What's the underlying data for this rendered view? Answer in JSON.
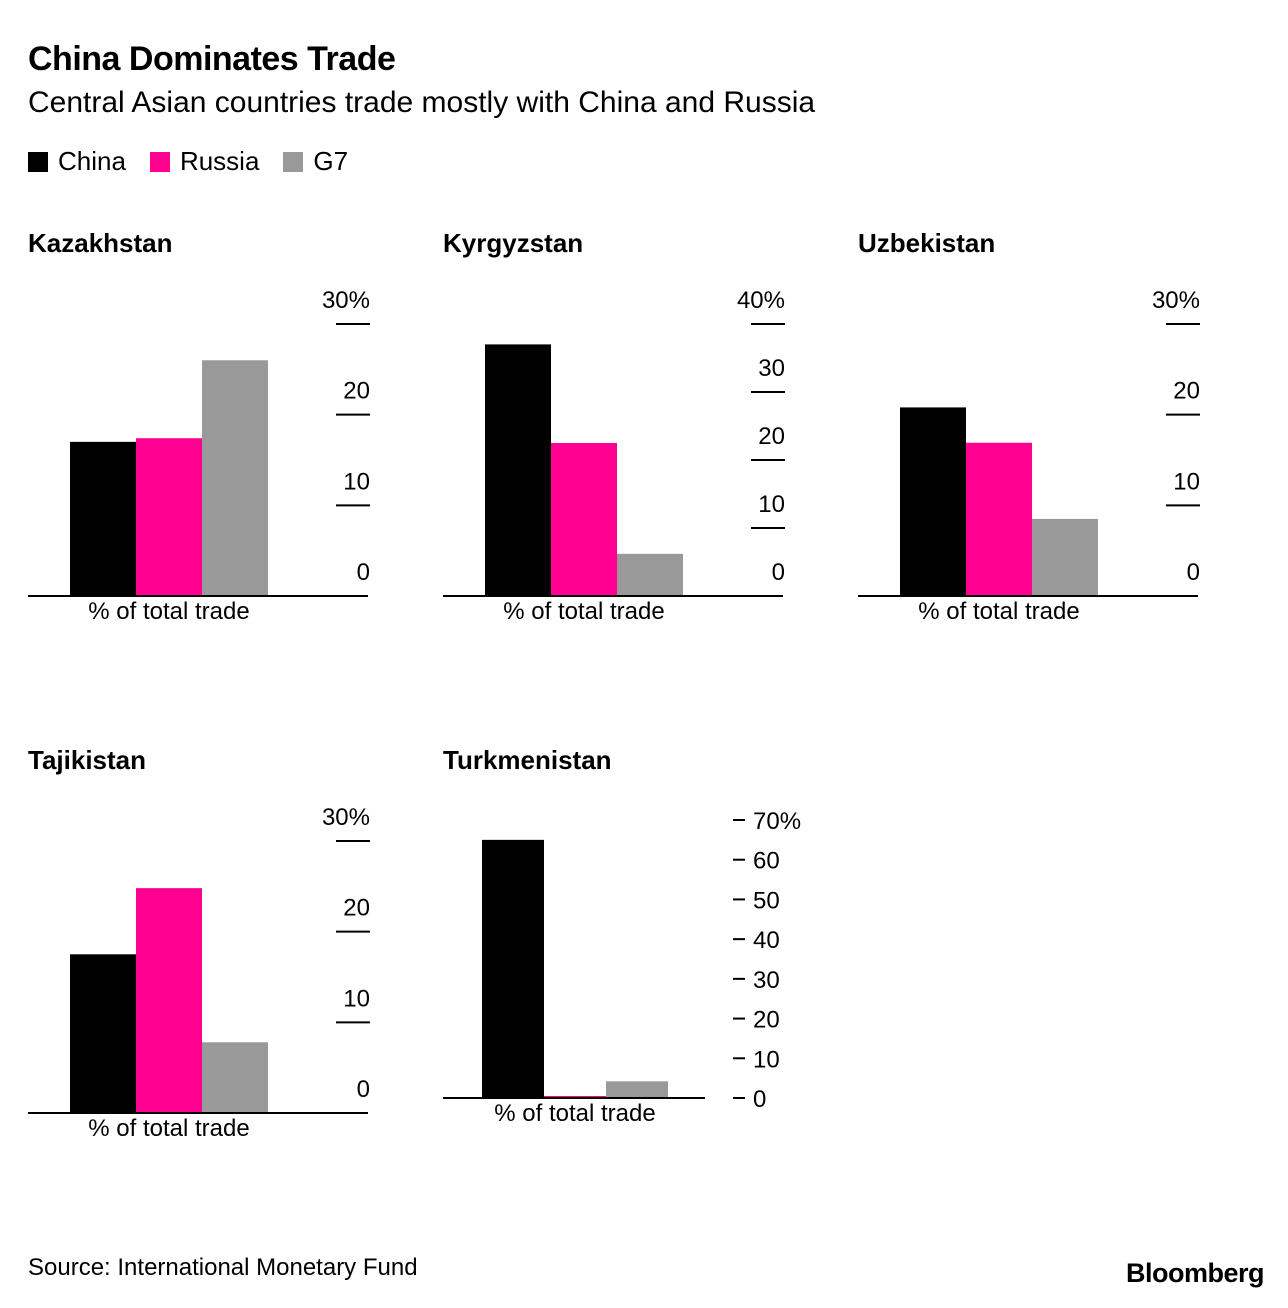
{
  "header": {
    "title": "China Dominates Trade",
    "subtitle": "Central Asian countries trade mostly with China and Russia"
  },
  "legend": [
    {
      "label": "China",
      "color": "#000000"
    },
    {
      "label": "Russia",
      "color": "#ff0090"
    },
    {
      "label": "G7",
      "color": "#999999"
    }
  ],
  "chart_data": [
    {
      "type": "bar",
      "title": "Kazakhstan",
      "categories": [
        "China",
        "Russia",
        "G7"
      ],
      "values": [
        17,
        17.4,
        26
      ],
      "xlabel": "% of total trade",
      "ylim": [
        0,
        30
      ],
      "yticks": [
        0,
        10,
        20,
        30
      ],
      "ytick_labels": [
        "0",
        "10",
        "20",
        "30%"
      ]
    },
    {
      "type": "bar",
      "title": "Kyrgyzstan",
      "categories": [
        "China",
        "Russia",
        "G7"
      ],
      "values": [
        37,
        22.5,
        6.2
      ],
      "xlabel": "% of total trade",
      "ylim": [
        0,
        40
      ],
      "yticks": [
        0,
        10,
        20,
        30,
        40
      ],
      "ytick_labels": [
        "0",
        "10",
        "20",
        "30",
        "40%"
      ]
    },
    {
      "type": "bar",
      "title": "Uzbekistan",
      "categories": [
        "China",
        "Russia",
        "G7"
      ],
      "values": [
        20.8,
        16.9,
        8.5
      ],
      "xlabel": "% of total trade",
      "ylim": [
        0,
        30
      ],
      "yticks": [
        0,
        10,
        20,
        30
      ],
      "ytick_labels": [
        "0",
        "10",
        "20",
        "30%"
      ]
    },
    {
      "type": "bar",
      "title": "Tajikistan",
      "categories": [
        "China",
        "Russia",
        "G7"
      ],
      "values": [
        17.5,
        24.8,
        7.8
      ],
      "xlabel": "% of total trade",
      "ylim": [
        0,
        30
      ],
      "yticks": [
        0,
        10,
        20,
        30
      ],
      "ytick_labels": [
        "0",
        "10",
        "20",
        "30%"
      ]
    },
    {
      "type": "bar",
      "title": "Turkmenistan",
      "categories": [
        "China",
        "Russia",
        "G7"
      ],
      "values": [
        65,
        0.5,
        4.2
      ],
      "xlabel": "% of total trade",
      "ylim": [
        0,
        70
      ],
      "yticks": [
        0,
        10,
        20,
        30,
        40,
        50,
        60,
        70
      ],
      "ytick_labels": [
        "0",
        "10",
        "20",
        "30",
        "40",
        "50",
        "60",
        "70%"
      ]
    }
  ],
  "footer": {
    "source": "Source: International Monetary Fund",
    "logo": "Bloomberg"
  }
}
